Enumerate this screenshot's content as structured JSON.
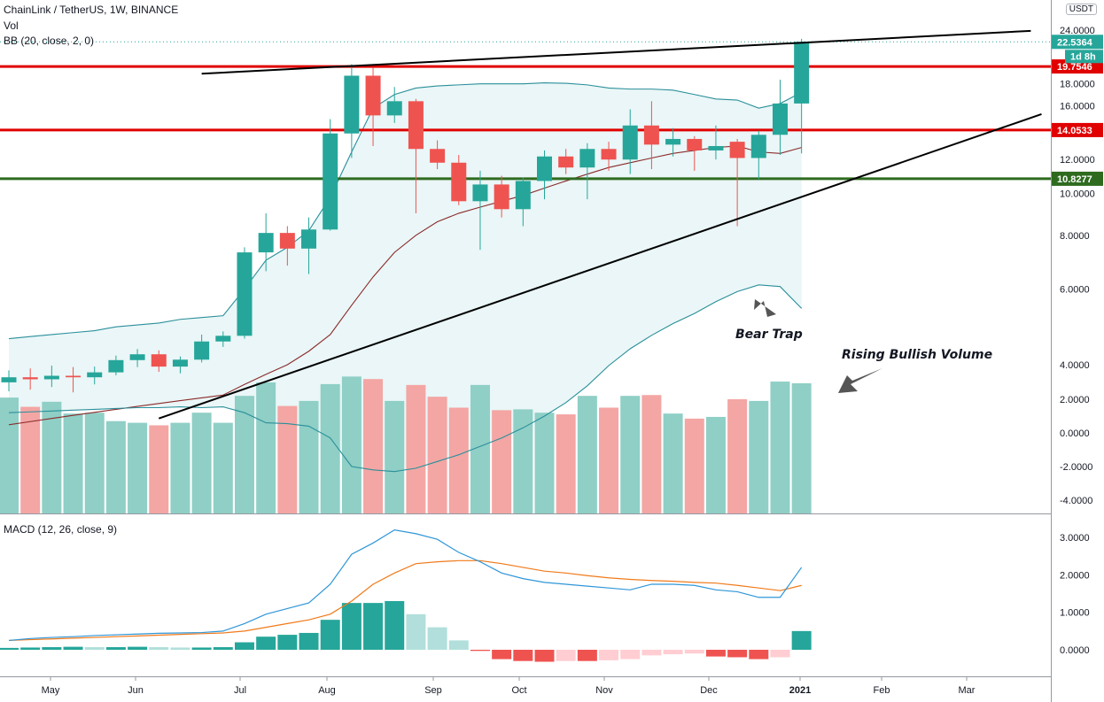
{
  "header": {
    "symbol": "ChainLink / TetherUS, 1W, BINANCE",
    "vol": "Vol",
    "bb": "BB (20, close, 2, 0)",
    "macd": "MACD (12, 26, close, 9)",
    "currency": "USDT"
  },
  "colors": {
    "up": "#26a69a",
    "down": "#ef5350",
    "up_vol": "#8fcfc6",
    "down_vol": "#f3a6a4",
    "bb_band": "#2a8f9a",
    "bb_basis": "#8b2a2a",
    "bb_fill": "#eaf6f7",
    "red_line": "#e00000",
    "green_line": "#2e6b1f",
    "macd_line": "#2f96d8",
    "signal_line": "#f07a1a"
  },
  "annotations": {
    "bear_trap": "Bear Trap",
    "rising_volume": "Rising Bullish Volume"
  },
  "chart_data": {
    "type": "candlestick",
    "title": "ChainLink / TetherUS, 1W, BINANCE",
    "x_labels": [
      "May",
      "Jun",
      "Jul",
      "Aug",
      "Sep",
      "Oct",
      "Nov",
      "Dec",
      "2021",
      "Feb",
      "Mar"
    ],
    "price_axis": {
      "ticks": [
        4.0,
        6.0,
        8.0,
        10.0,
        12.0,
        16.0,
        18.0,
        24.0
      ],
      "tick_labels": [
        "4.0000",
        "6.0000",
        "8.0000",
        "10.0000",
        "12.0000",
        "16.0000",
        "18.0000",
        "24.0000"
      ],
      "scale": "log"
    },
    "volume_axis_labels": [
      "2.0000",
      "0.0000",
      "-2.0000",
      "-4.0000"
    ],
    "candles": [
      {
        "o": 3.64,
        "h": 3.88,
        "l": 3.47,
        "c": 3.74
      },
      {
        "o": 3.74,
        "h": 3.92,
        "l": 3.5,
        "c": 3.7
      },
      {
        "o": 3.7,
        "h": 3.98,
        "l": 3.55,
        "c": 3.77
      },
      {
        "o": 3.77,
        "h": 3.95,
        "l": 3.45,
        "c": 3.74
      },
      {
        "o": 3.74,
        "h": 3.96,
        "l": 3.6,
        "c": 3.84
      },
      {
        "o": 3.84,
        "h": 4.2,
        "l": 3.78,
        "c": 4.1
      },
      {
        "o": 4.1,
        "h": 4.35,
        "l": 3.95,
        "c": 4.23
      },
      {
        "o": 4.23,
        "h": 4.32,
        "l": 3.85,
        "c": 3.96
      },
      {
        "o": 3.96,
        "h": 4.18,
        "l": 3.82,
        "c": 4.11
      },
      {
        "o": 4.11,
        "h": 4.7,
        "l": 4.05,
        "c": 4.53
      },
      {
        "o": 4.53,
        "h": 4.78,
        "l": 4.4,
        "c": 4.67
      },
      {
        "o": 4.67,
        "h": 7.5,
        "l": 4.6,
        "c": 7.3
      },
      {
        "o": 7.3,
        "h": 9.0,
        "l": 6.6,
        "c": 8.1
      },
      {
        "o": 8.1,
        "h": 8.4,
        "l": 6.8,
        "c": 7.45
      },
      {
        "o": 7.45,
        "h": 8.8,
        "l": 6.5,
        "c": 8.25
      },
      {
        "o": 8.25,
        "h": 14.9,
        "l": 8.2,
        "c": 13.8
      },
      {
        "o": 13.8,
        "h": 20.0,
        "l": 12.1,
        "c": 18.8
      },
      {
        "o": 18.8,
        "h": 19.6,
        "l": 12.9,
        "c": 15.2
      },
      {
        "o": 15.2,
        "h": 17.7,
        "l": 14.6,
        "c": 16.4
      },
      {
        "o": 16.4,
        "h": 16.6,
        "l": 9.0,
        "c": 12.7
      },
      {
        "o": 12.7,
        "h": 13.3,
        "l": 11.4,
        "c": 11.8
      },
      {
        "o": 11.8,
        "h": 12.3,
        "l": 9.4,
        "c": 9.6
      },
      {
        "o": 9.6,
        "h": 11.3,
        "l": 7.4,
        "c": 10.5
      },
      {
        "o": 10.5,
        "h": 11.0,
        "l": 8.8,
        "c": 9.2
      },
      {
        "o": 9.2,
        "h": 10.9,
        "l": 8.4,
        "c": 10.7
      },
      {
        "o": 10.7,
        "h": 12.6,
        "l": 9.7,
        "c": 12.2
      },
      {
        "o": 12.2,
        "h": 12.7,
        "l": 11.1,
        "c": 11.5
      },
      {
        "o": 11.5,
        "h": 13.1,
        "l": 9.7,
        "c": 12.7
      },
      {
        "o": 12.7,
        "h": 13.2,
        "l": 11.3,
        "c": 12.0
      },
      {
        "o": 12.0,
        "h": 15.7,
        "l": 11.1,
        "c": 14.4
      },
      {
        "o": 14.4,
        "h": 16.4,
        "l": 11.4,
        "c": 13.0
      },
      {
        "o": 13.0,
        "h": 14.2,
        "l": 12.2,
        "c": 13.4
      },
      {
        "o": 13.4,
        "h": 13.6,
        "l": 11.3,
        "c": 12.6
      },
      {
        "o": 12.6,
        "h": 14.4,
        "l": 12.0,
        "c": 12.9
      },
      {
        "o": 13.2,
        "h": 13.4,
        "l": 8.4,
        "c": 12.1
      },
      {
        "o": 12.1,
        "h": 14.0,
        "l": 10.8,
        "c": 13.7
      },
      {
        "o": 13.7,
        "h": 18.4,
        "l": 12.3,
        "c": 16.2
      },
      {
        "o": 16.2,
        "h": 22.9,
        "l": 12.4,
        "c": 22.54
      }
    ],
    "volume": [
      {
        "v": 2.1,
        "up": true
      },
      {
        "v": 1.55,
        "up": false
      },
      {
        "v": 1.85,
        "up": true
      },
      {
        "v": 1.15,
        "up": true
      },
      {
        "v": 1.2,
        "up": true
      },
      {
        "v": 0.7,
        "up": true
      },
      {
        "v": 0.6,
        "up": true
      },
      {
        "v": 0.45,
        "up": false
      },
      {
        "v": 0.6,
        "up": true
      },
      {
        "v": 1.2,
        "up": true
      },
      {
        "v": 0.6,
        "up": true
      },
      {
        "v": 2.2,
        "up": true
      },
      {
        "v": 3.0,
        "up": true
      },
      {
        "v": 1.6,
        "up": false
      },
      {
        "v": 1.9,
        "up": true
      },
      {
        "v": 2.9,
        "up": true
      },
      {
        "v": 3.35,
        "up": true
      },
      {
        "v": 3.2,
        "up": false
      },
      {
        "v": 1.9,
        "up": true
      },
      {
        "v": 2.85,
        "up": false
      },
      {
        "v": 2.15,
        "up": false
      },
      {
        "v": 1.5,
        "up": false
      },
      {
        "v": 2.85,
        "up": true
      },
      {
        "v": 1.35,
        "up": false
      },
      {
        "v": 1.4,
        "up": true
      },
      {
        "v": 1.2,
        "up": true
      },
      {
        "v": 1.1,
        "up": false
      },
      {
        "v": 2.2,
        "up": true
      },
      {
        "v": 1.5,
        "up": false
      },
      {
        "v": 2.2,
        "up": true
      },
      {
        "v": 2.25,
        "up": false
      },
      {
        "v": 1.15,
        "up": true
      },
      {
        "v": 0.85,
        "up": false
      },
      {
        "v": 0.95,
        "up": true
      },
      {
        "v": 2.0,
        "up": false
      },
      {
        "v": 1.9,
        "up": true
      },
      {
        "v": 3.05,
        "up": true
      },
      {
        "v": 2.95,
        "up": true
      }
    ],
    "bb_upper": [
      4.6,
      4.65,
      4.7,
      4.75,
      4.8,
      4.9,
      4.95,
      5.0,
      5.1,
      5.15,
      5.2,
      6.0,
      7.0,
      7.5,
      8.2,
      9.8,
      12.5,
      15.8,
      17.0,
      17.6,
      17.8,
      17.9,
      18.0,
      18.0,
      18.0,
      18.1,
      18.05,
      17.9,
      17.6,
      17.5,
      17.5,
      17.4,
      17.0,
      16.6,
      16.5,
      15.8,
      16.2,
      17.2
    ],
    "bb_basis": [
      2.9,
      2.95,
      3.0,
      3.05,
      3.1,
      3.15,
      3.2,
      3.25,
      3.3,
      3.35,
      3.4,
      3.6,
      3.8,
      4.0,
      4.3,
      4.7,
      5.5,
      6.4,
      7.3,
      8.0,
      8.6,
      9.0,
      9.3,
      9.6,
      9.9,
      10.3,
      10.7,
      11.1,
      11.5,
      11.8,
      12.1,
      12.4,
      12.6,
      12.8,
      12.9,
      12.5,
      12.4,
      12.8
    ],
    "bb_lower": [
      1.2,
      1.25,
      1.3,
      1.35,
      1.4,
      1.45,
      1.5,
      1.5,
      1.55,
      1.5,
      1.55,
      1.2,
      0.6,
      0.55,
      0.4,
      -0.3,
      -2.0,
      -2.2,
      -2.3,
      -2.1,
      -1.7,
      -1.3,
      -0.8,
      -0.3,
      0.3,
      1.0,
      1.8,
      2.8,
      4.0,
      5.0,
      5.8,
      6.5,
      7.1,
      7.8,
      8.4,
      8.8,
      8.7,
      7.4
    ],
    "red_levels": [
      19.7546,
      14.0533
    ],
    "green_level": 10.8277,
    "tags": [
      {
        "label": "22.5364",
        "color": "#26a69a",
        "value": 22.5364
      },
      {
        "label": "19.7546",
        "color": "#e00000",
        "value": 19.7546
      },
      {
        "label": "14.0533",
        "color": "#e00000",
        "value": 14.0533
      },
      {
        "label": "10.8277",
        "color": "#2e6b1f",
        "value": 10.8277
      }
    ],
    "countdown": "1d 8h",
    "macd": {
      "axis_labels": [
        "3.0000",
        "2.0000",
        "1.0000",
        "0.0000"
      ],
      "macd_line": [
        0.25,
        0.3,
        0.33,
        0.35,
        0.38,
        0.4,
        0.42,
        0.44,
        0.45,
        0.46,
        0.5,
        0.7,
        0.95,
        1.1,
        1.25,
        1.75,
        2.55,
        2.85,
        3.2,
        3.1,
        2.95,
        2.6,
        2.35,
        2.05,
        1.9,
        1.8,
        1.75,
        1.7,
        1.65,
        1.6,
        1.75,
        1.75,
        1.72,
        1.6,
        1.55,
        1.4,
        1.4,
        2.2
      ],
      "signal_line": [
        0.25,
        0.27,
        0.29,
        0.31,
        0.33,
        0.35,
        0.37,
        0.39,
        0.41,
        0.43,
        0.45,
        0.5,
        0.6,
        0.7,
        0.8,
        0.95,
        1.3,
        1.75,
        2.05,
        2.3,
        2.35,
        2.38,
        2.38,
        2.3,
        2.2,
        2.1,
        2.05,
        1.98,
        1.92,
        1.88,
        1.85,
        1.83,
        1.8,
        1.78,
        1.72,
        1.65,
        1.58,
        1.72
      ],
      "histogram": [
        0.05,
        0.06,
        0.07,
        0.08,
        0.07,
        0.07,
        0.08,
        0.07,
        0.06,
        0.06,
        0.07,
        0.2,
        0.35,
        0.4,
        0.45,
        0.8,
        1.25,
        1.25,
        1.3,
        0.95,
        0.6,
        0.25,
        -0.03,
        -0.25,
        -0.3,
        -0.32,
        -0.3,
        -0.3,
        -0.28,
        -0.25,
        -0.15,
        -0.12,
        -0.1,
        -0.18,
        -0.2,
        -0.25,
        -0.2,
        0.5
      ]
    }
  }
}
